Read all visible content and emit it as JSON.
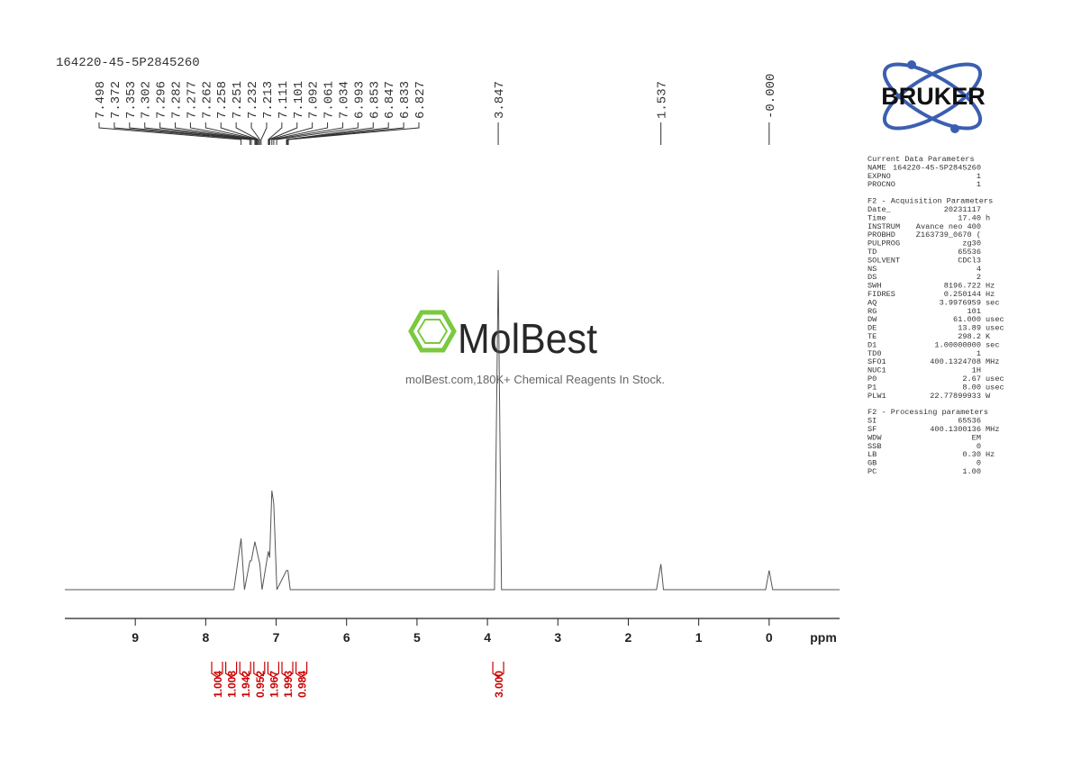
{
  "chart_data": {
    "type": "line",
    "title": "164220-45-5P2845260",
    "x_label": "ppm",
    "x": [
      10,
      7.6,
      7.498,
      7.45,
      7.372,
      7.353,
      7.302,
      7.282,
      7.262,
      7.232,
      7.2,
      7.111,
      7.092,
      7.061,
      7.034,
      6.99,
      6.853,
      6.833,
      6.8,
      3.9,
      3.847,
      3.8,
      1.6,
      1.537,
      1.5,
      0.05,
      0.0,
      -0.05,
      -1
    ],
    "values": [
      0,
      0,
      16,
      0,
      9,
      9,
      15,
      13,
      11,
      8,
      0,
      12,
      10,
      31,
      27,
      0,
      6,
      6,
      0,
      0,
      100,
      0,
      0,
      8,
      0,
      0,
      6,
      0,
      0
    ],
    "color": "#555555",
    "xlim": [
      10,
      -1
    ],
    "ylim": [
      0,
      100
    ],
    "xticks": [
      9,
      8,
      7,
      6,
      5,
      4,
      3,
      2,
      1,
      0
    ],
    "peaks": [
      7.498,
      7.372,
      7.353,
      7.302,
      7.296,
      7.282,
      7.277,
      7.262,
      7.258,
      7.251,
      7.232,
      7.213,
      7.111,
      7.101,
      7.092,
      7.061,
      7.034,
      6.993,
      6.853,
      6.847,
      6.833,
      6.827,
      3.847,
      1.537,
      {
        "value": 0,
        "label": "-0.000"
      }
    ],
    "integrals": [
      1.004,
      1.008,
      1.942,
      0.952,
      1.967,
      1.993,
      0.984,
      3
    ],
    "integral_labels": [
      "1.004",
      "1.008",
      "1.942",
      "0.952",
      "1.967",
      "1.993",
      "0.984",
      "3.000"
    ]
  },
  "watermark": {
    "brand": "MolBest",
    "tagline": "molBest.com,180K+ Chemical Reagents In Stock."
  },
  "logo": "BRUKER",
  "parameters": [
    {
      "title": "Current Data Parameters",
      "rows": [
        [
          "NAME",
          "164220-45-5P2845260"
        ],
        [
          "EXPNO",
          "1"
        ],
        [
          "PROCNO",
          "1"
        ]
      ]
    },
    {
      "title": "F2 - Acquisition Parameters",
      "rows": [
        [
          "Date_",
          "20231117"
        ],
        [
          "Time",
          "17.40",
          "h"
        ],
        [
          "INSTRUM",
          "Avance neo 400"
        ],
        [
          "PROBHD",
          "Z163739_0670 ("
        ],
        [
          "PULPROG",
          "zg30"
        ],
        [
          "TD",
          "65536"
        ],
        [
          "SOLVENT",
          "CDCl3"
        ],
        [
          "NS",
          "4"
        ],
        [
          "DS",
          "2"
        ],
        [
          "SWH",
          "8196.722",
          "Hz"
        ],
        [
          "FIDRES",
          "0.250144",
          "Hz"
        ],
        [
          "AQ",
          "3.9976959",
          "sec"
        ],
        [
          "RG",
          "101"
        ],
        [
          "DW",
          "61.000",
          "usec"
        ],
        [
          "DE",
          "13.89",
          "usec"
        ],
        [
          "TE",
          "298.2",
          "K"
        ],
        [
          "D1",
          "1.00000000",
          "sec"
        ],
        [
          "TD0",
          "1"
        ],
        [
          "SFO1",
          "400.1324708",
          "MHz"
        ],
        [
          "NUC1",
          "1H"
        ],
        [
          "P0",
          "2.67",
          "usec"
        ],
        [
          "P1",
          "8.00",
          "usec"
        ],
        [
          "PLW1",
          "22.77899933",
          "W"
        ]
      ]
    },
    {
      "title": "F2 - Processing parameters",
      "rows": [
        [
          "SI",
          "65536"
        ],
        [
          "SF",
          "400.1300136",
          "MHz"
        ],
        [
          "WDW",
          "EM"
        ],
        [
          "SSB",
          "0"
        ],
        [
          "LB",
          "0.30",
          "Hz"
        ],
        [
          "GB",
          "0"
        ],
        [
          "PC",
          "1.00"
        ]
      ]
    }
  ]
}
